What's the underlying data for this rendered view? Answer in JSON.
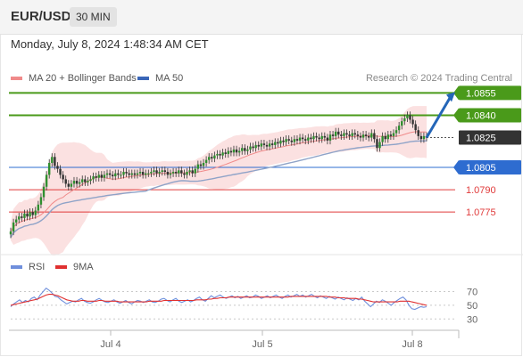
{
  "header": {
    "symbol": "EUR/USD",
    "interval": "30 MIN"
  },
  "timestamp": "Monday, July 8, 2024 1:48:34 AM CET",
  "legend": {
    "ma20_label": "MA 20 + Bollinger Bands",
    "ma50_label": "MA 50",
    "ma20_color": "#f08a8a",
    "ma50_color": "#3a66b8"
  },
  "credit": "Research © 2024 Trading Central",
  "rsi_legend": {
    "rsi_label": "RSI",
    "ma_label": "9MA",
    "rsi_color": "#6f8fdc",
    "ma_color": "#e03030"
  },
  "chart_data": [
    {
      "type": "candlestick",
      "title": "",
      "x_ticks": [
        "Jul 4",
        "Jul 5",
        "Jul 8"
      ],
      "ylim": [
        1.075,
        1.086
      ],
      "levels": [
        {
          "label": "1.0855",
          "value": 1.0855,
          "kind": "resistance",
          "color": "#4a9a1a"
        },
        {
          "label": "1.0840",
          "value": 1.084,
          "kind": "resistance",
          "color": "#4a9a1a"
        },
        {
          "label": "1.0825",
          "value": 1.0825,
          "kind": "last",
          "color": "#333333"
        },
        {
          "label": "1.0805",
          "value": 1.0805,
          "kind": "pivot",
          "color": "#2e6cd0"
        },
        {
          "label": "1.0790",
          "value": 1.079,
          "kind": "support",
          "color": "#e03a3a"
        },
        {
          "label": "1.0775",
          "value": 1.0775,
          "kind": "support",
          "color": "#e03a3a"
        }
      ],
      "close": [
        1.0762,
        1.0768,
        1.077,
        1.0772,
        1.0771,
        1.0774,
        1.0772,
        1.0775,
        1.0773,
        1.0776,
        1.078,
        1.0785,
        1.0792,
        1.08,
        1.0808,
        1.0812,
        1.0806,
        1.0804,
        1.08,
        1.0797,
        1.0794,
        1.0792,
        1.0794,
        1.0796,
        1.0794,
        1.0795,
        1.0797,
        1.0795,
        1.0796,
        1.0797,
        1.0799,
        1.0798,
        1.08,
        1.0798,
        1.08,
        1.0801,
        1.08,
        1.0799,
        1.0801,
        1.08,
        1.08,
        1.0802,
        1.0801,
        1.08,
        1.0801,
        1.08,
        1.0801,
        1.0802,
        1.08,
        1.0801,
        1.0801,
        1.0802,
        1.0803,
        1.0801,
        1.0802,
        1.0803,
        1.0802,
        1.08,
        1.0801,
        1.0802,
        1.0801,
        1.0803,
        1.0801,
        1.08,
        1.0802,
        1.0803,
        1.0801,
        1.0804,
        1.0807,
        1.0806,
        1.0808,
        1.081,
        1.0812,
        1.0811,
        1.0813,
        1.0814,
        1.0813,
        1.0815,
        1.0814,
        1.0816,
        1.0815,
        1.0817,
        1.0815,
        1.0816,
        1.0818,
        1.0816,
        1.0817,
        1.0819,
        1.0818,
        1.082,
        1.0819,
        1.0821,
        1.082,
        1.0819,
        1.0821,
        1.082,
        1.0822,
        1.0821,
        1.0823,
        1.0822,
        1.0824,
        1.0823,
        1.0822,
        1.0824,
        1.0823,
        1.0825,
        1.0824,
        1.0823,
        1.0825,
        1.0824,
        1.0826,
        1.0825,
        1.0824,
        1.0826,
        1.0825,
        1.0823,
        1.0827,
        1.0826,
        1.0829,
        1.0827,
        1.0826,
        1.0828,
        1.0827,
        1.0826,
        1.0828,
        1.0827,
        1.0826,
        1.0825,
        1.0827,
        1.0826,
        1.0825,
        1.0828,
        1.0824,
        1.0818,
        1.0822,
        1.0826,
        1.0824,
        1.0827,
        1.0826,
        1.0828,
        1.083,
        1.0833,
        1.0836,
        1.0838,
        1.084,
        1.0837,
        1.0834,
        1.083,
        1.0826,
        1.0824,
        1.0826,
        1.0825
      ],
      "forecast": {
        "from": 1.0825,
        "to": 1.0855
      }
    },
    {
      "type": "line",
      "title": "",
      "ylim": [
        20,
        85
      ],
      "y_ticks": [
        70,
        50,
        30
      ],
      "series": [
        {
          "name": "RSI",
          "values": [
            48,
            52,
            55,
            58,
            54,
            57,
            55,
            60,
            62,
            58,
            65,
            70,
            75,
            72,
            68,
            63,
            62,
            58,
            55,
            52,
            54,
            56,
            55,
            58,
            60,
            56,
            54,
            53,
            55,
            58,
            60,
            57,
            55,
            54,
            56,
            58,
            55,
            53,
            55,
            57,
            54,
            52,
            55,
            57,
            56,
            54,
            56,
            58,
            55,
            54,
            56,
            59,
            60,
            57,
            55,
            58,
            60,
            56,
            54,
            56,
            58,
            55,
            57,
            60,
            62,
            58,
            56,
            60,
            64,
            61,
            63,
            65,
            62,
            60,
            62,
            64,
            61,
            63,
            60,
            62,
            64,
            61,
            62,
            65,
            63,
            60,
            62,
            64,
            61,
            63,
            65,
            62,
            60,
            63,
            65,
            62,
            64,
            66,
            63,
            65,
            62,
            64,
            66,
            63,
            61,
            64,
            62,
            60,
            63,
            61,
            59,
            62,
            60,
            58,
            61,
            59,
            57,
            60,
            58,
            62,
            56,
            52,
            48,
            52,
            56,
            54,
            58,
            56,
            53,
            50,
            54,
            57,
            60,
            62,
            58,
            50,
            45,
            44,
            46,
            48,
            47,
            48
          ]
        },
        {
          "name": "9MA",
          "values": [
            50,
            51,
            52,
            53,
            54,
            55,
            56,
            57,
            58,
            59,
            61,
            63,
            65,
            66,
            66,
            65,
            64,
            62,
            60,
            58,
            57,
            56,
            56,
            56,
            57,
            57,
            56,
            56,
            56,
            56,
            57,
            57,
            56,
            56,
            56,
            56,
            56,
            55,
            55,
            55,
            55,
            55,
            55,
            55,
            55,
            55,
            55,
            56,
            56,
            56,
            56,
            56,
            57,
            57,
            57,
            57,
            57,
            57,
            57,
            57,
            57,
            57,
            57,
            58,
            58,
            58,
            58,
            59,
            59,
            60,
            60,
            61,
            61,
            61,
            62,
            62,
            62,
            62,
            62,
            62,
            62,
            62,
            62,
            62,
            62,
            62,
            62,
            62,
            62,
            62,
            62,
            62,
            62,
            62,
            62,
            63,
            63,
            63,
            63,
            63,
            63,
            63,
            63,
            63,
            63,
            63,
            63,
            63,
            62,
            62,
            62,
            61,
            61,
            61,
            60,
            60,
            60,
            60,
            59,
            59,
            58,
            57,
            56,
            55,
            55,
            55,
            55,
            55,
            55,
            55,
            55,
            55,
            56,
            56,
            56,
            56,
            55,
            54,
            53,
            52,
            51,
            50
          ]
        }
      ]
    }
  ]
}
